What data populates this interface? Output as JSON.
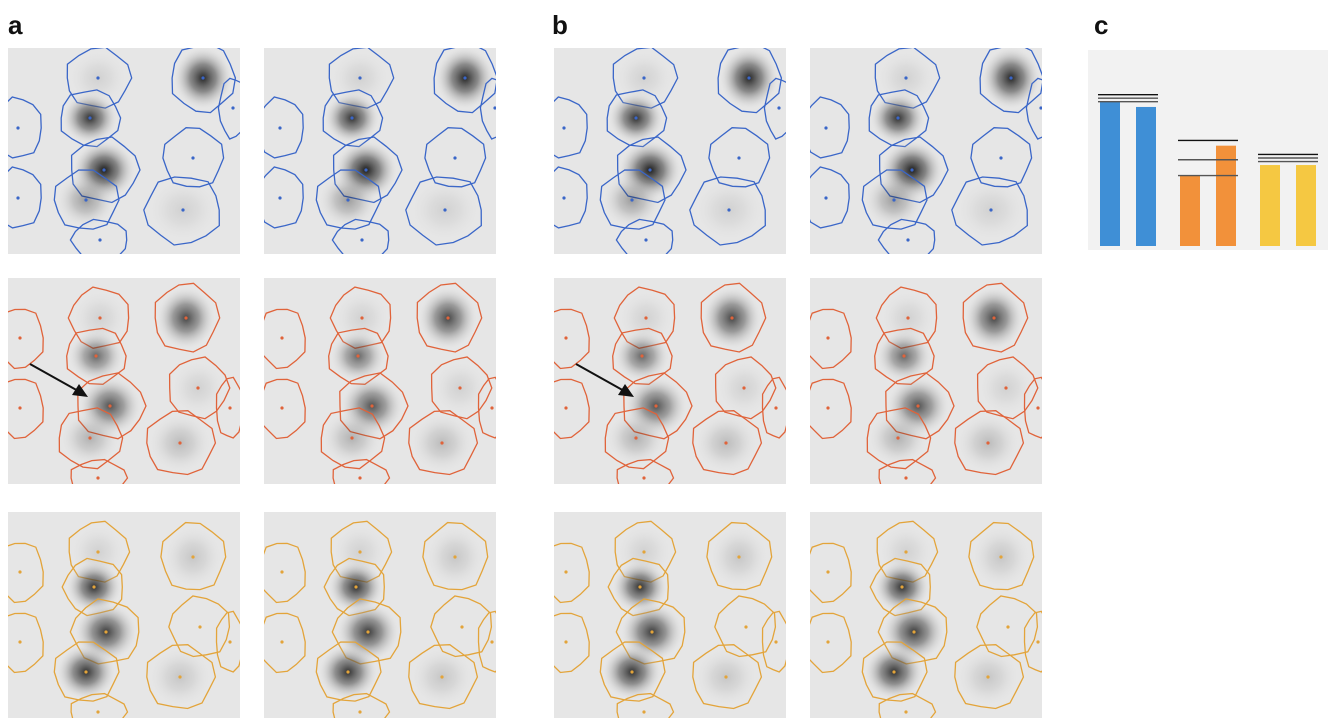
{
  "panel_labels": {
    "a": "a",
    "b": "b",
    "c": "c"
  },
  "row_colors": [
    "#3a66c8",
    "#e0633a",
    "#e3a43a"
  ],
  "chart_data": {
    "type": "bar",
    "title": "",
    "categories": [
      "",
      "",
      "",
      "",
      "",
      ""
    ],
    "values": [
      0.82,
      0.79,
      0.4,
      0.57,
      0.46,
      0.46
    ],
    "colors": [
      "#3f8fd6",
      "#3f8fd6",
      "#f2913a",
      "#f2913a",
      "#f5c842",
      "#f5c842"
    ],
    "ylim": [
      0,
      1
    ],
    "grid": false
  }
}
